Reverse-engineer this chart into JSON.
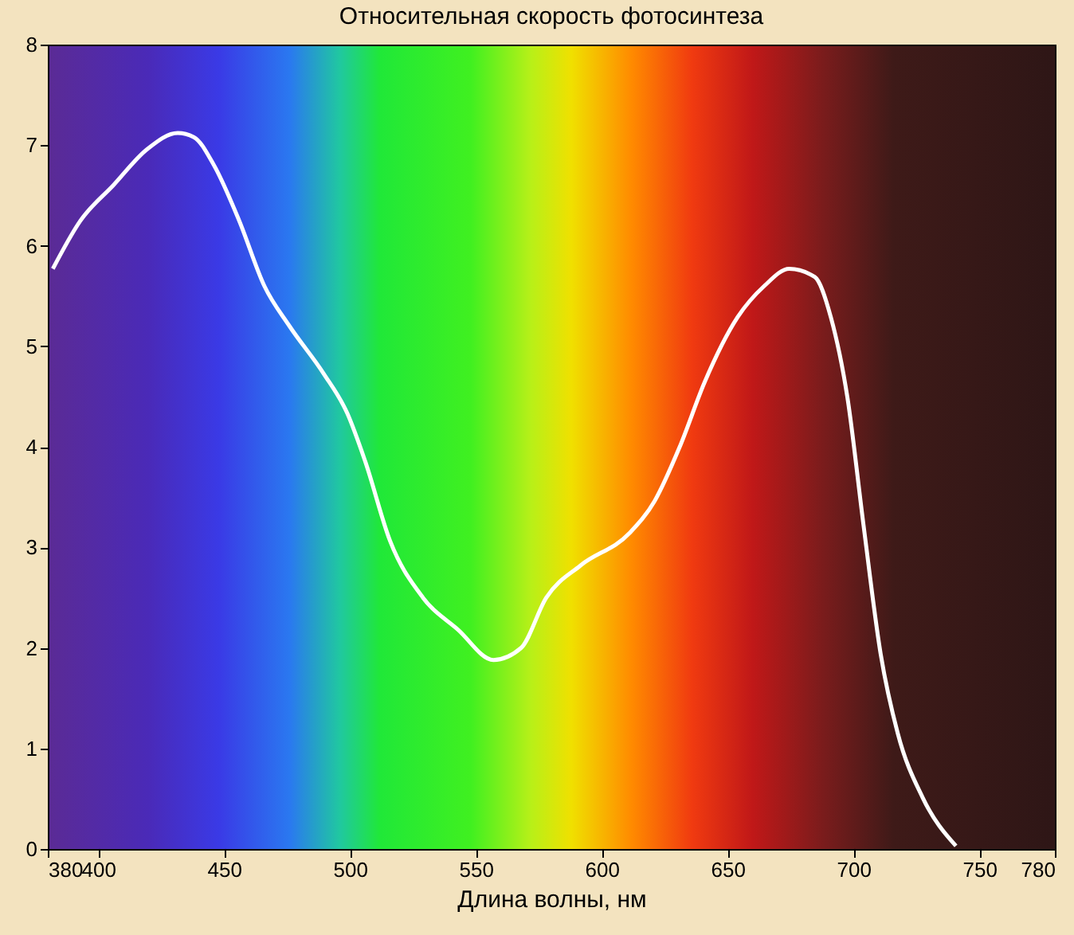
{
  "chart_data": {
    "type": "line",
    "title": "Относительная скорость фотосинтеза",
    "xlabel": "Длина волны, нм",
    "xlim": [
      380,
      780
    ],
    "xticks": [
      380,
      400,
      450,
      500,
      550,
      600,
      650,
      700,
      750,
      780
    ],
    "ylim": [
      0,
      8
    ],
    "yticks": [
      0,
      1,
      2,
      3,
      4,
      5,
      6,
      7,
      8
    ],
    "x": [
      382,
      393,
      406,
      419.5,
      431.6,
      438,
      446,
      456,
      466,
      476,
      489.5,
      499,
      506,
      516,
      529,
      543,
      557,
      568,
      578,
      591.6,
      611,
      621,
      631,
      641,
      654,
      664.6,
      674.5,
      684.6,
      691,
      697.6,
      704,
      710.8,
      717.6,
      727.5,
      740.7
    ],
    "series": [
      {
        "color": "#ffffff",
        "values": [
          5.77,
          6.25,
          6.6,
          6.96,
          7.12,
          7.08,
          6.8,
          6.25,
          5.6,
          5.2,
          4.73,
          4.33,
          3.86,
          3.06,
          2.5,
          2.18,
          1.88,
          2.0,
          2.5,
          2.82,
          3.14,
          3.46,
          4.0,
          4.65,
          5.29,
          5.6,
          5.77,
          5.69,
          5.29,
          4.49,
          3.22,
          1.94,
          1.15,
          0.51,
          0.03
        ]
      }
    ]
  }
}
